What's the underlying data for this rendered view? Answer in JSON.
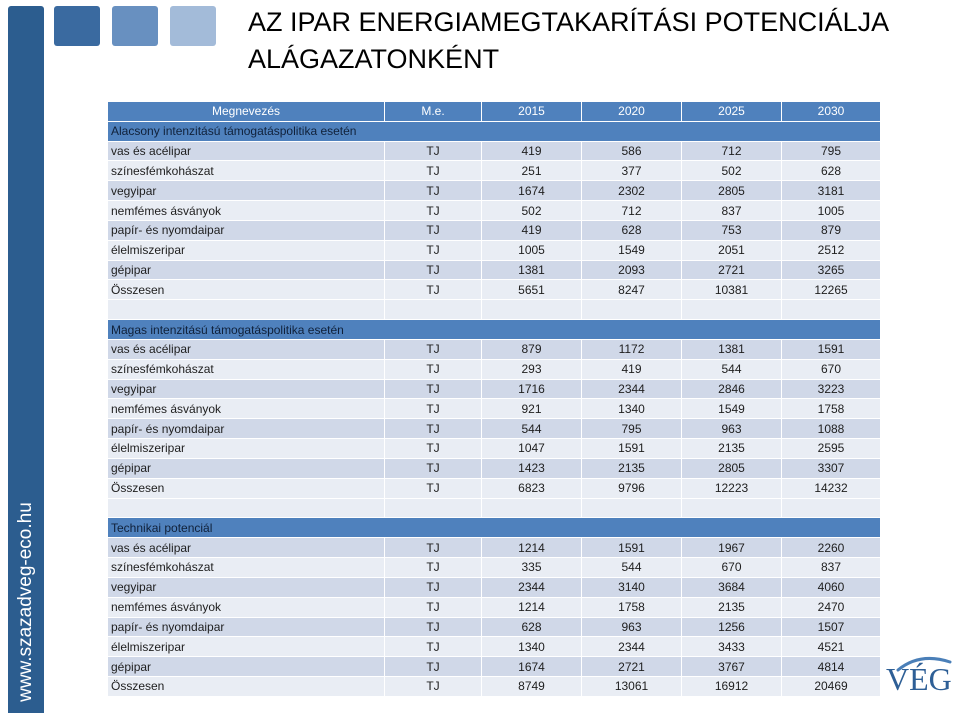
{
  "colors": {
    "brand_dark": "#2c5d8f",
    "brand_sq1": "#3a6aa0",
    "brand_mid": "#6890c0",
    "brand_light": "#a3bbd9",
    "header": "#4f81bd",
    "section_text": "#10213a",
    "row_a": "#d0d8e8",
    "row_b": "#e9edf4",
    "logo": "#2e5f96",
    "logo_swoosh": "#4a7fb8"
  },
  "brand": {
    "site_url": "www.szazadveg-eco.hu",
    "logo_text": "VÉG"
  },
  "title": {
    "lines": [
      "AZ IPAR ENERGIAMEGTAKARÍTÁSI POTENCIÁLJA",
      "ALÁGAZATONKÉNT"
    ]
  },
  "table": {
    "headers": [
      "Megnevezés",
      "M.e.",
      "2015",
      "2020",
      "2025",
      "2030"
    ],
    "sections": [
      {
        "title": "Alacsony intenzitású támogatáspolitika esetén",
        "rows": [
          {
            "label": "vas és acélipar",
            "unit": "TJ",
            "values": [
              419,
              586,
              712,
              795
            ]
          },
          {
            "label": "színesfémkohászat",
            "unit": "TJ",
            "values": [
              251,
              377,
              502,
              628
            ]
          },
          {
            "label": "vegyipar",
            "unit": "TJ",
            "values": [
              1674,
              2302,
              2805,
              3181
            ]
          },
          {
            "label": "nemfémes ásványok",
            "unit": "TJ",
            "values": [
              502,
              712,
              837,
              1005
            ]
          },
          {
            "label": "papír- és nyomdaipar",
            "unit": "TJ",
            "values": [
              419,
              628,
              753,
              879
            ]
          },
          {
            "label": "élelmiszeripar",
            "unit": "TJ",
            "values": [
              1005,
              1549,
              2051,
              2512
            ]
          },
          {
            "label": "gépipar",
            "unit": "TJ",
            "values": [
              1381,
              2093,
              2721,
              3265
            ]
          },
          {
            "label": "Összesen",
            "unit": "TJ",
            "values": [
              5651,
              8247,
              10381,
              12265
            ]
          }
        ]
      },
      {
        "title": "Magas intenzitású támogatáspolitika esetén",
        "rows": [
          {
            "label": "vas és acélipar",
            "unit": "TJ",
            "values": [
              879,
              1172,
              1381,
              1591
            ]
          },
          {
            "label": "színesfémkohászat",
            "unit": "TJ",
            "values": [
              293,
              419,
              544,
              670
            ]
          },
          {
            "label": "vegyipar",
            "unit": "TJ",
            "values": [
              1716,
              2344,
              2846,
              3223
            ]
          },
          {
            "label": "nemfémes ásványok",
            "unit": "TJ",
            "values": [
              921,
              1340,
              1549,
              1758
            ]
          },
          {
            "label": "papír- és nyomdaipar",
            "unit": "TJ",
            "values": [
              544,
              795,
              963,
              1088
            ]
          },
          {
            "label": "élelmiszeripar",
            "unit": "TJ",
            "values": [
              1047,
              1591,
              2135,
              2595
            ]
          },
          {
            "label": "gépipar",
            "unit": "TJ",
            "values": [
              1423,
              2135,
              2805,
              3307
            ]
          },
          {
            "label": "Összesen",
            "unit": "TJ",
            "values": [
              6823,
              9796,
              12223,
              14232
            ]
          }
        ]
      },
      {
        "title": "Technikai potenciál",
        "rows": [
          {
            "label": "vas és acélipar",
            "unit": "TJ",
            "values": [
              1214,
              1591,
              1967,
              2260
            ]
          },
          {
            "label": "színesfémkohászat",
            "unit": "TJ",
            "values": [
              335,
              544,
              670,
              837
            ]
          },
          {
            "label": "vegyipar",
            "unit": "TJ",
            "values": [
              2344,
              3140,
              3684,
              4060
            ]
          },
          {
            "label": "nemfémes ásványok",
            "unit": "TJ",
            "values": [
              1214,
              1758,
              2135,
              2470
            ]
          },
          {
            "label": "papír- és nyomdaipar",
            "unit": "TJ",
            "values": [
              628,
              963,
              1256,
              1507
            ]
          },
          {
            "label": "élelmiszeripar",
            "unit": "TJ",
            "values": [
              1340,
              2344,
              3433,
              4521
            ]
          },
          {
            "label": "gépipar",
            "unit": "TJ",
            "values": [
              1674,
              2721,
              3767,
              4814
            ]
          },
          {
            "label": "Összesen",
            "unit": "TJ",
            "values": [
              8749,
              13061,
              16912,
              20469
            ]
          }
        ]
      }
    ]
  }
}
